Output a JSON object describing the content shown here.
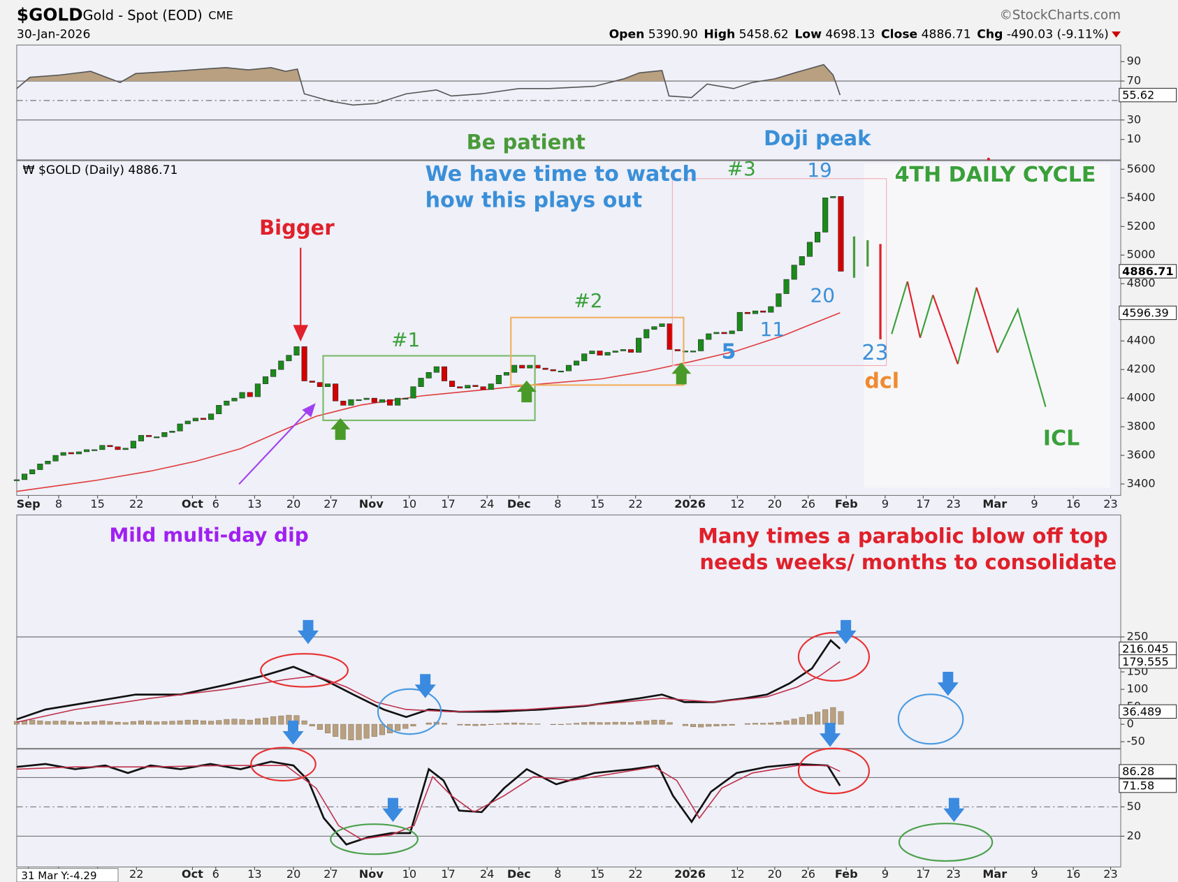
{
  "header": {
    "symbol": "$GOLD",
    "name": "Gold - Spot (EOD)",
    "exchange": "CME",
    "source": "©StockCharts.com",
    "date": "30-Jan-2026",
    "open_label": "Open",
    "open": "5390.90",
    "high_label": "High",
    "high": "5458.62",
    "low_label": "Low",
    "low": "4698.13",
    "close_label": "Close",
    "close": "4886.71",
    "chg_label": "Chg",
    "chg": "-490.03 (-9.11%)"
  },
  "cursor_readout": "31 Mar Y:-4.29",
  "annotations": [
    "Be patient",
    "Doji peak",
    "We have time to watch",
    "how this plays out",
    "#3",
    "19",
    "4TH DAILY CYCLE",
    "Bigger",
    "#1",
    "#2",
    "20",
    "11",
    "5",
    "23",
    "dcl",
    "ICL",
    "Mild multi-day dip",
    "Many times a parabolic blow off top",
    "needs weeks/ months to consolidate"
  ],
  "chart_data": [
    {
      "type": "line",
      "ylim": [
        -11,
        107
      ],
      "yticks": [
        10,
        30,
        70,
        90
      ],
      "grid_lines": [
        30,
        70
      ],
      "dashed_line": 50,
      "series": [
        {
          "color": "#555555",
          "fill": "#b8a080",
          "fill_above": 70,
          "tag_last": true,
          "x": [
            0,
            1.7,
            5.6,
            9.5,
            13.3,
            15.3,
            20.1,
            24.0,
            26.9,
            29.8,
            32.7,
            34.6,
            36.1,
            37.0,
            40.4,
            43.3,
            46.2,
            50.1,
            54.0,
            55.9,
            59.8,
            64.6,
            68.5,
            74.3,
            78.1,
            80.1,
            83.0,
            83.9,
            86.8,
            88.8,
            92.2,
            94.6,
            97.5,
            100.4,
            103.8,
            105.0,
            105.9
          ],
          "values": [
            62.3,
            73.8,
            76.2,
            80,
            68.5,
            77.7,
            80,
            82.3,
            83.8,
            81.5,
            83.8,
            80,
            82.3,
            56.9,
            49.2,
            45.4,
            46.9,
            56.9,
            60.8,
            54.6,
            56.9,
            62.3,
            62.3,
            64.6,
            72.3,
            78.5,
            80.8,
            54.6,
            53.1,
            66.9,
            62.3,
            68.5,
            72.3,
            79.2,
            86.9,
            76.2,
            55.62
          ]
        }
      ]
    },
    {
      "type": "candlestick",
      "label": "₩ $GOLD (Daily) 4886.71",
      "xlim": [
        0,
        142
      ],
      "ylim": [
        3320,
        5660
      ],
      "yticks": [
        3400,
        3600,
        3800,
        4000,
        4200,
        4400,
        4600,
        4800,
        5000,
        5200,
        5400,
        5600
      ],
      "xticks": [
        {
          "value": 1.5,
          "label": "Sep"
        },
        {
          "value": 5.4,
          "label": "8"
        },
        {
          "value": 10.4,
          "label": "15"
        },
        {
          "value": 15.4,
          "label": "22"
        },
        {
          "value": 22.6,
          "label": "Oct"
        },
        {
          "value": 25.6,
          "label": "6"
        },
        {
          "value": 30.6,
          "label": "13"
        },
        {
          "value": 35.6,
          "label": "20"
        },
        {
          "value": 40.4,
          "label": "27"
        },
        {
          "value": 45.6,
          "label": "Nov"
        },
        {
          "value": 50.5,
          "label": "10"
        },
        {
          "value": 55.5,
          "label": "17"
        },
        {
          "value": 60.5,
          "label": "24"
        },
        {
          "value": 64.6,
          "label": "Dec"
        },
        {
          "value": 69.6,
          "label": "8"
        },
        {
          "value": 74.7,
          "label": "15"
        },
        {
          "value": 79.6,
          "label": "22"
        },
        {
          "value": 86.6,
          "label": "2026"
        },
        {
          "value": 92.7,
          "label": "12"
        },
        {
          "value": 97.5,
          "label": "20"
        },
        {
          "value": 101.8,
          "label": "26"
        },
        {
          "value": 106.7,
          "label": "Feb"
        },
        {
          "value": 111.7,
          "label": "9"
        },
        {
          "value": 116.6,
          "label": "17"
        },
        {
          "value": 120.5,
          "label": "23"
        },
        {
          "value": 125.8,
          "label": "Mar"
        },
        {
          "value": 130.9,
          "label": "9"
        },
        {
          "value": 135.9,
          "label": "16"
        },
        {
          "value": 140.7,
          "label": "23"
        }
      ],
      "up_color": "#1a8a1a",
      "down_color": "#d40000",
      "tag_last": true,
      "x": [
        0,
        1,
        2,
        3,
        4,
        5,
        6,
        7,
        8,
        9,
        10,
        11,
        12,
        13,
        14,
        15,
        16,
        17,
        18,
        19,
        20,
        21,
        22,
        23,
        24,
        25,
        26,
        27,
        28,
        29,
        30,
        31,
        32,
        33,
        34,
        35,
        36,
        37,
        38,
        39,
        40,
        41,
        42,
        43,
        44,
        45,
        46,
        47,
        48,
        49,
        50,
        51,
        52,
        53,
        54,
        55,
        56,
        57,
        58,
        59,
        60,
        61,
        62,
        63,
        64,
        65,
        66,
        67,
        68,
        69,
        70,
        71,
        72,
        73,
        74,
        75,
        76,
        77,
        78,
        79,
        80,
        81,
        82,
        83,
        84,
        85,
        86,
        87,
        88,
        89,
        90,
        91,
        92,
        93,
        94,
        95,
        96,
        97,
        98,
        99,
        100,
        101,
        102,
        103,
        104,
        105,
        106
      ],
      "values": [
        3430,
        3470,
        3500,
        3540,
        3560,
        3600,
        3620,
        3610,
        3625,
        3640,
        3640,
        3670,
        3660,
        3640,
        3650,
        3700,
        3740,
        3730,
        3730,
        3760,
        3770,
        3820,
        3840,
        3860,
        3850,
        3890,
        3950,
        3980,
        4000,
        4040,
        4010,
        4100,
        4150,
        4200,
        4260,
        4300,
        4360,
        4120,
        4110,
        4080,
        4100,
        3980,
        3950,
        3990,
        3990,
        4000,
        3970,
        3990,
        3950,
        4000,
        4000,
        4080,
        4140,
        4180,
        4220,
        4120,
        4080,
        4070,
        4090,
        4080,
        4060,
        4100,
        4160,
        4180,
        4230,
        4210,
        4230,
        4210,
        4200,
        4190,
        4190,
        4230,
        4260,
        4310,
        4330,
        4300,
        4320,
        4330,
        4340,
        4320,
        4420,
        4480,
        4500,
        4520,
        4340,
        4330,
        4330,
        4330,
        4410,
        4450,
        4460,
        4450,
        4470,
        4600,
        4590,
        4610,
        4600,
        4640,
        4730,
        4830,
        4930,
        4990,
        5090,
        5160,
        5400,
        5410,
        4886.71
      ],
      "series": [
        {
          "type": "line",
          "color": "#e03a3a",
          "tag_last": true,
          "x": [
            0,
            10.4,
            17.2,
            23.0,
            28.8,
            34.6,
            38.5,
            44.3,
            52.0,
            59.8,
            67.5,
            75.2,
            81.0,
            86.8,
            92.6,
            98.5,
            102.3,
            105.9
          ],
          "values": [
            3348,
            3427,
            3490,
            3558,
            3647,
            3784,
            3873,
            3952,
            4015,
            4057,
            4099,
            4135,
            4188,
            4256,
            4330,
            4435,
            4519,
            4596.39
          ]
        }
      ]
    },
    {
      "type": "line",
      "ylim": [
        -69,
        599
      ],
      "yticks": [
        -50,
        0,
        50,
        100,
        150,
        200,
        250
      ],
      "grid_lines": [
        250
      ],
      "series": [
        {
          "type": "bar",
          "color": "#b8a080",
          "tag_last": true,
          "x": [
            0,
            1,
            2,
            3,
            4,
            5,
            6,
            7,
            8,
            9,
            10,
            11,
            12,
            13,
            14,
            15,
            16,
            17,
            18,
            19,
            20,
            21,
            22,
            23,
            24,
            25,
            26,
            27,
            28,
            29,
            30,
            31,
            32,
            33,
            34,
            35,
            36,
            37,
            38,
            39,
            40,
            41,
            42,
            43,
            44,
            45,
            46,
            47,
            48,
            49,
            50,
            51,
            52,
            53,
            54,
            55,
            56,
            57,
            58,
            59,
            60,
            61,
            62,
            63,
            64,
            65,
            66,
            67,
            68,
            69,
            70,
            71,
            72,
            73,
            74,
            75,
            76,
            77,
            78,
            79,
            80,
            81,
            82,
            83,
            84,
            85,
            86,
            87,
            88,
            89,
            90,
            91,
            92,
            93,
            94,
            95,
            96,
            97,
            98,
            99,
            100,
            101,
            102,
            103,
            104,
            105,
            106
          ],
          "values": [
            8,
            10,
            12,
            10,
            8,
            9,
            10,
            8,
            6,
            7,
            8,
            10,
            8,
            6,
            5,
            8,
            10,
            9,
            7,
            8,
            9,
            10,
            12,
            12,
            10,
            9,
            11,
            14,
            15,
            14,
            12,
            16,
            18,
            22,
            24,
            26,
            25,
            10,
            -5,
            -15,
            -25,
            -35,
            -42,
            -45,
            -44,
            -40,
            -35,
            -30,
            -25,
            -18,
            -12,
            -5,
            0,
            4,
            6,
            3,
            0,
            -2,
            -3,
            -4,
            -3,
            -1,
            1,
            3,
            4,
            3,
            2,
            1,
            0,
            -1,
            -1,
            1,
            3,
            5,
            6,
            5,
            5,
            6,
            6,
            5,
            8,
            10,
            12,
            12,
            5,
            0,
            -4,
            -7,
            -8,
            -6,
            -5,
            -4,
            -3,
            0,
            2,
            3,
            3,
            4,
            6,
            10,
            15,
            20,
            28,
            35,
            42,
            48,
            36.489
          ]
        },
        {
          "type": "line",
          "color": "#111111",
          "width": 2.5,
          "tag_last": true,
          "x": [
            0,
            3.7,
            9.5,
            15.3,
            21.1,
            26.9,
            31.7,
            35.6,
            39.5,
            43.3,
            47.2,
            50.1,
            53.0,
            56.9,
            61.7,
            67.5,
            73.3,
            80.1,
            83.0,
            85.9,
            89.7,
            93.6,
            96.5,
            99.4,
            102.3,
            104.7,
            105.9
          ],
          "values": [
            14.3,
            42.2,
            63.6,
            85,
            85,
            112.8,
            138.7,
            164.5,
            128.1,
            85,
            42.2,
            20.8,
            42.2,
            35.8,
            35.8,
            42.2,
            52.9,
            74.3,
            85,
            63.6,
            63.6,
            74.3,
            85,
            117.1,
            159.9,
            240,
            216.045
          ]
        },
        {
          "type": "line",
          "color": "#c0304a",
          "width": 1.5,
          "tag_last": true,
          "x": [
            0,
            7.5,
            17.2,
            26.9,
            34.6,
            38.5,
            42.4,
            46.2,
            50.1,
            55.9,
            65.6,
            75.2,
            83.0,
            89.7,
            96.5,
            100.4,
            103.3,
            105.9
          ],
          "values": [
            5.8,
            42.2,
            74.3,
            100,
            128.1,
            138.7,
            106.7,
            63.6,
            42.2,
            35.8,
            42.2,
            57.2,
            74.3,
            63.6,
            78.6,
            106.7,
            138.7,
            179.555
          ]
        }
      ]
    },
    {
      "type": "line",
      "ylim": [
        -11.5,
        109
      ],
      "yticks": [
        20,
        50,
        80
      ],
      "grid_lines": [
        20,
        80
      ],
      "dashed_line": 50,
      "series": [
        {
          "type": "line",
          "color": "#111111",
          "width": 2.5,
          "tag_last": true,
          "x": [
            0,
            3.7,
            7.5,
            11.4,
            14.3,
            17.2,
            21.1,
            24.9,
            28.8,
            32.7,
            35.6,
            37.5,
            39.5,
            42.4,
            45.3,
            48.2,
            50.6,
            53.0,
            54.9,
            56.9,
            59.8,
            62.7,
            65.6,
            69.4,
            74.3,
            79.1,
            82.5,
            84.4,
            86.8,
            89.3,
            92.6,
            96.5,
            100.4,
            104.3,
            105.9
          ],
          "values": [
            90.8,
            93.8,
            88.5,
            92.3,
            84.6,
            92.3,
            88.5,
            93.8,
            88.5,
            96.2,
            92.3,
            76.9,
            38.5,
            11.5,
            19.2,
            23.1,
            23.1,
            88.5,
            76.9,
            46.2,
            44.6,
            69.2,
            88.5,
            73.1,
            84.6,
            88.5,
            92.3,
            61.5,
            34.6,
            65.4,
            84.6,
            90.8,
            93.8,
            92.3,
            71.58
          ]
        },
        {
          "type": "line",
          "color": "#c0304a",
          "width": 1.5,
          "tag_last": true,
          "x": [
            0,
            7.5,
            17.2,
            26.9,
            34.6,
            38.5,
            41.4,
            44.3,
            48.2,
            51.1,
            53.5,
            55.9,
            58.8,
            62.7,
            66.5,
            71.4,
            77.2,
            82.0,
            84.9,
            87.8,
            90.7,
            94.6,
            100.4,
            104.3,
            105.9
          ],
          "values": [
            88.5,
            90.8,
            90.8,
            92.3,
            92.3,
            69.2,
            30.8,
            16.9,
            21.5,
            30.8,
            80.8,
            61.5,
            44.6,
            61.5,
            80.8,
            76.9,
            84.6,
            90.8,
            76.9,
            38.5,
            69.2,
            84.6,
            92.3,
            92.3,
            86.28
          ]
        }
      ]
    }
  ]
}
